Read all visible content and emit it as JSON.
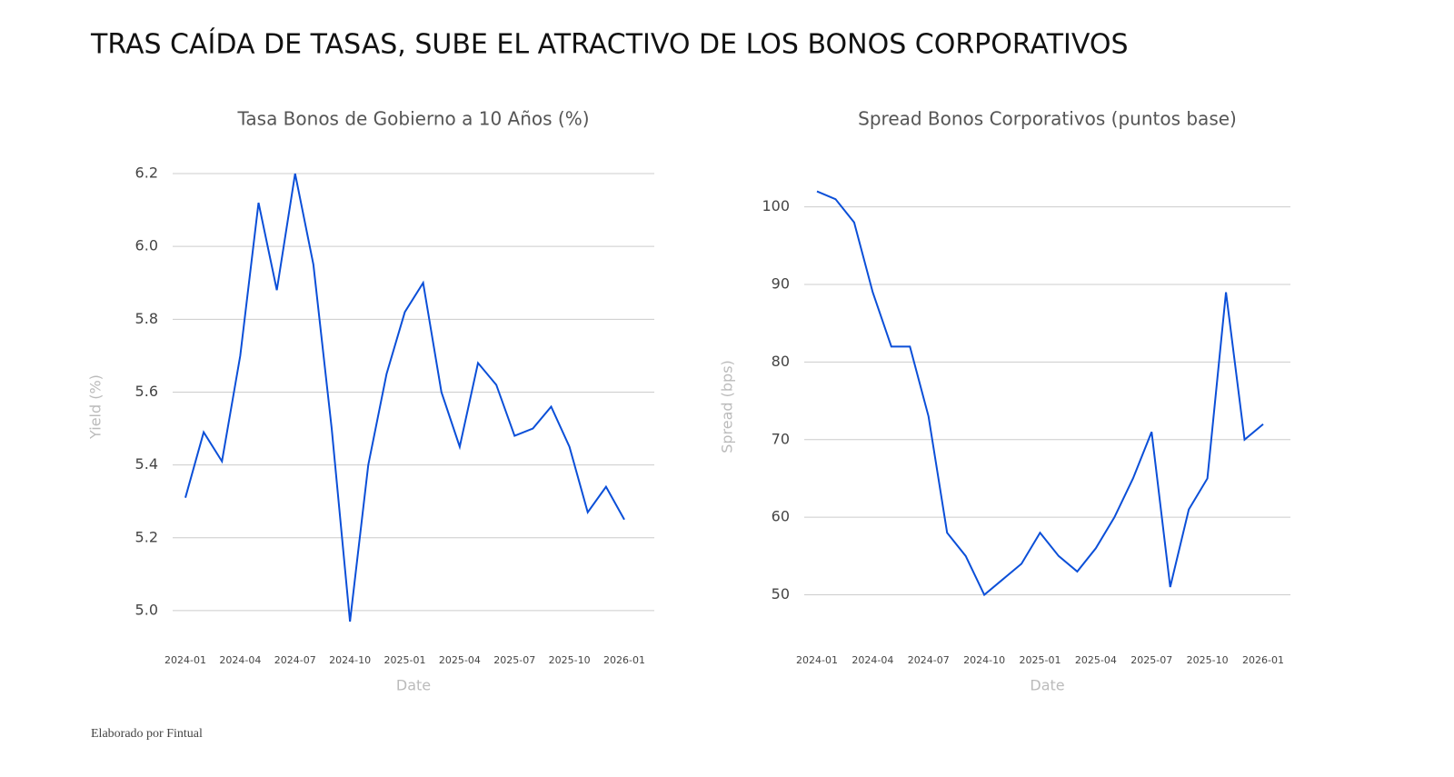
{
  "title": "TRAS CAÍDA DE TASAS, SUBE EL ATRACTIVO DE LOS BONOS CORPORATIVOS",
  "footer": "Elaborado por Fintual",
  "chart_data": [
    {
      "type": "line",
      "title": "Tasa Bonos de Gobierno a 10 Años (%)",
      "xlabel": "Date",
      "ylabel": "Yield (%)",
      "x": [
        "2024-01",
        "2024-02",
        "2024-03",
        "2024-04",
        "2024-05",
        "2024-06",
        "2024-07",
        "2024-08",
        "2024-09",
        "2024-10",
        "2024-11",
        "2024-12",
        "2025-01",
        "2025-02",
        "2025-03",
        "2025-04",
        "2025-05",
        "2025-06",
        "2025-07",
        "2025-08",
        "2025-09",
        "2025-10",
        "2025-11",
        "2025-12",
        "2026-01"
      ],
      "xticks": [
        "2024-01",
        "2024-04",
        "2024-07",
        "2024-10",
        "2025-01",
        "2025-04",
        "2025-07",
        "2025-10",
        "2026-01"
      ],
      "series": [
        {
          "name": "Yield",
          "color": "#0b4fd8",
          "values": [
            5.31,
            5.49,
            5.41,
            5.7,
            6.12,
            5.88,
            6.2,
            5.95,
            5.5,
            4.97,
            5.4,
            5.65,
            5.82,
            5.9,
            5.6,
            5.45,
            5.68,
            5.62,
            5.48,
            5.5,
            5.56,
            5.45,
            5.27,
            5.34,
            5.25
          ]
        }
      ],
      "ylim": [
        4.905,
        6.215
      ],
      "yticks": [
        {
          "value": 5,
          "label": "5.0"
        },
        5.2,
        5.4,
        5.6,
        5.8,
        {
          "value": 6,
          "label": "6.0"
        },
        6.2
      ],
      "grid": true
    },
    {
      "type": "line",
      "title": "Spread Bonos Corporativos (puntos base)",
      "xlabel": "Date",
      "ylabel": "Spread (bps)",
      "x": [
        "2024-01",
        "2024-02",
        "2024-03",
        "2024-04",
        "2024-05",
        "2024-06",
        "2024-07",
        "2024-08",
        "2024-09",
        "2024-10",
        "2024-11",
        "2024-12",
        "2025-01",
        "2025-02",
        "2025-03",
        "2025-04",
        "2025-05",
        "2025-06",
        "2025-07",
        "2025-08",
        "2025-09",
        "2025-10",
        "2025-11",
        "2025-12",
        "2026-01"
      ],
      "xticks": [
        "2024-01",
        "2024-04",
        "2024-07",
        "2024-10",
        "2025-01",
        "2025-04",
        "2025-07",
        "2025-10",
        "2026-01"
      ],
      "series": [
        {
          "name": "Spread",
          "color": "#0b4fd8",
          "values": [
            102,
            101,
            98,
            89,
            82,
            82,
            73,
            58,
            55,
            50,
            52,
            54,
            58,
            55,
            53,
            56,
            60,
            65,
            71,
            51,
            61,
            65,
            89,
            70,
            72
          ]
        }
      ],
      "ylim": [
        43.5,
        105
      ],
      "yticks": [
        50,
        60,
        70,
        80,
        90,
        100
      ],
      "grid": true
    }
  ]
}
